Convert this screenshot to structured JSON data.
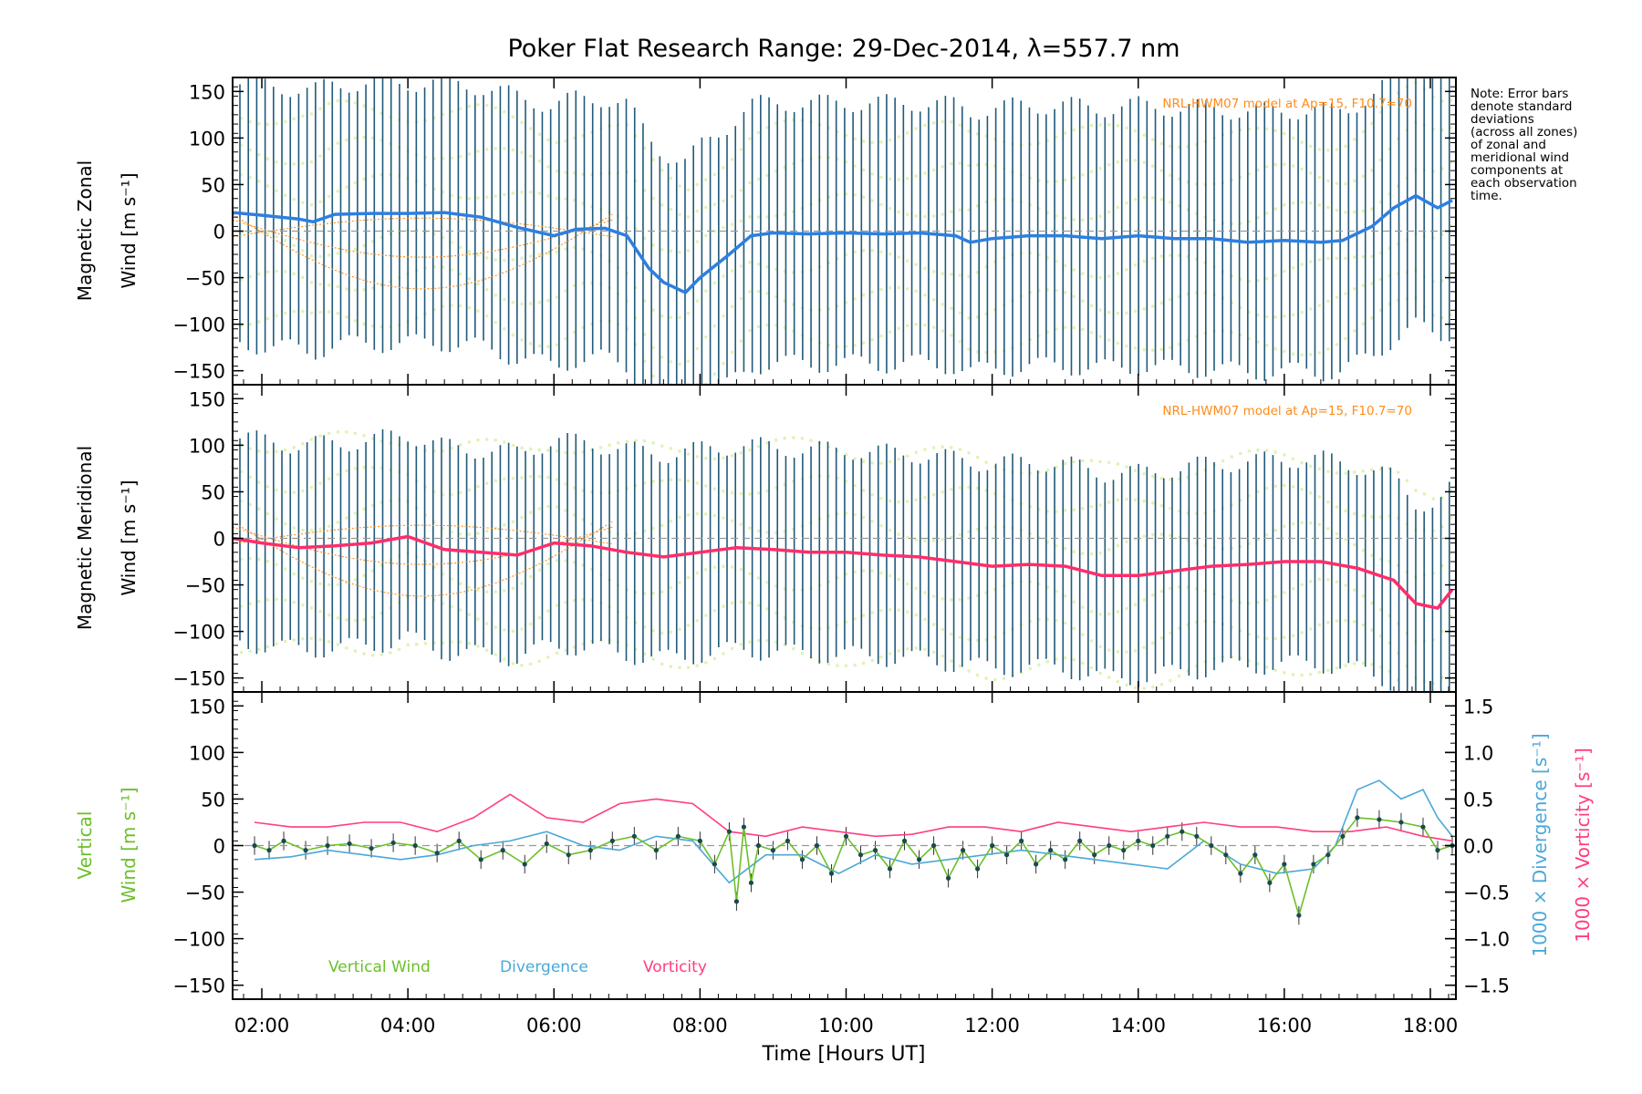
{
  "title": "Poker Flat Research Range: 29-Dec-2014, λ=557.7 nm",
  "note": [
    "Note: Error bars",
    "denote standard",
    "deviations",
    "(across all zones)",
    "of zonal and",
    "meridional wind",
    "components at",
    "each observation",
    "time."
  ],
  "colors": {
    "zonal": "#2d7fe0",
    "meridional": "#ff2d6a",
    "vertical": "#6cbf2a",
    "divergence": "#4aa8d8",
    "vorticity": "#ff3d7f",
    "errorbar": "#1f5a7a",
    "model": "#ff8c1a",
    "zone_points": "#d8f0a0",
    "points_blue": "#9aa0ff",
    "axis": "#000000"
  },
  "xaxis": {
    "label": "Time [Hours UT]",
    "range": [
      1.6,
      18.35
    ],
    "ticks": [
      2,
      4,
      6,
      8,
      10,
      12,
      14,
      16,
      18
    ],
    "tick_labels": [
      "02:00",
      "04:00",
      "06:00",
      "08:00",
      "10:00",
      "12:00",
      "14:00",
      "16:00",
      "18:00"
    ]
  },
  "chart_data": [
    {
      "type": "line",
      "panel": "zonal",
      "ylabel_1": "Magnetic Zonal",
      "ylabel_2": "Wind [m s⁻¹]",
      "ylim": [
        -165,
        165
      ],
      "yticks": [
        -150,
        -100,
        -50,
        0,
        50,
        100,
        150
      ],
      "model_label": "NRL-HWM07 model at Ap=15, F10.7=70",
      "series": [
        {
          "x": [
            1.6,
            2.0,
            2.5,
            2.7,
            3.0,
            3.5,
            4.0,
            4.5,
            5.0,
            5.5,
            6.0,
            6.3,
            6.7,
            7.0,
            7.3,
            7.5,
            7.8,
            8.0,
            8.4,
            8.7,
            9.0,
            9.5,
            10.0,
            10.5,
            11.0,
            11.5,
            11.7,
            12.0,
            12.5,
            13.0,
            13.5,
            14.0,
            14.5,
            15.0,
            15.5,
            16.0,
            16.5,
            16.8,
            17.2,
            17.5,
            17.8,
            18.1,
            18.3
          ],
          "values": [
            20,
            17,
            13,
            10,
            18,
            19,
            19,
            20,
            15,
            4,
            -5,
            2,
            3,
            -5,
            -40,
            -55,
            -66,
            -50,
            -25,
            -5,
            -2,
            -3,
            -2,
            -3,
            -2,
            -5,
            -12,
            -8,
            -5,
            -5,
            -8,
            -5,
            -8,
            -8,
            -12,
            -10,
            -12,
            -10,
            5,
            25,
            38,
            25,
            33
          ]
        }
      ],
      "error_halfwidth": 140
    },
    {
      "type": "line",
      "panel": "meridional",
      "ylabel_1": "Magnetic Meridional",
      "ylabel_2": "Wind [m s⁻¹]",
      "ylim": [
        -165,
        165
      ],
      "yticks": [
        -150,
        -100,
        -50,
        0,
        50,
        100,
        150
      ],
      "model_label": "NRL-HWM07 model at Ap=15, F10.7=70",
      "series": [
        {
          "x": [
            1.6,
            2.0,
            2.5,
            3.0,
            3.5,
            4.0,
            4.5,
            5.0,
            5.5,
            6.0,
            6.5,
            7.0,
            7.5,
            8.0,
            8.5,
            9.0,
            9.5,
            10.0,
            10.5,
            11.0,
            11.5,
            12.0,
            12.5,
            13.0,
            13.5,
            14.0,
            14.5,
            15.0,
            15.5,
            16.0,
            16.5,
            17.0,
            17.5,
            17.8,
            18.1,
            18.3
          ],
          "values": [
            0,
            -5,
            -10,
            -8,
            -5,
            2,
            -12,
            -15,
            -18,
            -5,
            -8,
            -15,
            -20,
            -15,
            -10,
            -12,
            -15,
            -15,
            -18,
            -20,
            -25,
            -30,
            -28,
            -30,
            -40,
            -40,
            -35,
            -30,
            -28,
            -25,
            -25,
            -32,
            -45,
            -70,
            -75,
            -55
          ]
        }
      ],
      "error_halfwidth": 110
    },
    {
      "type": "line",
      "panel": "vertical",
      "ylabel_1": "Vertical",
      "ylabel_2": "Wind [m s⁻¹]",
      "ylim": [
        -165,
        165
      ],
      "yticks": [
        -150,
        -100,
        -50,
        0,
        50,
        100,
        150
      ],
      "y2label_1": "1000 × Divergence [s⁻¹]",
      "y2label_2": "1000 × Vorticity [s⁻¹]",
      "y2lim": [
        -1.65,
        1.65
      ],
      "y2ticks": [
        -1.5,
        -1.0,
        -0.5,
        0.0,
        0.5,
        1.0,
        1.5
      ],
      "y2tick_labels": [
        "−1.5",
        "−1.0",
        "−0.5",
        "0.0",
        "0.5",
        "1.0",
        "1.5"
      ],
      "legend": [
        "Vertical Wind",
        "Divergence",
        "Vorticity"
      ],
      "series": [
        {
          "name": "Vertical Wind",
          "axis": "left",
          "x": [
            1.9,
            2.1,
            2.3,
            2.6,
            2.9,
            3.2,
            3.5,
            3.8,
            4.1,
            4.4,
            4.7,
            5.0,
            5.3,
            5.6,
            5.9,
            6.2,
            6.5,
            6.8,
            7.1,
            7.4,
            7.7,
            8.0,
            8.2,
            8.4,
            8.5,
            8.6,
            8.7,
            8.8,
            9.0,
            9.2,
            9.4,
            9.6,
            9.8,
            10.0,
            10.2,
            10.4,
            10.6,
            10.8,
            11.0,
            11.2,
            11.4,
            11.6,
            11.8,
            12.0,
            12.2,
            12.4,
            12.6,
            12.8,
            13.0,
            13.2,
            13.4,
            13.6,
            13.8,
            14.0,
            14.2,
            14.4,
            14.6,
            14.8,
            15.0,
            15.2,
            15.4,
            15.6,
            15.8,
            16.0,
            16.2,
            16.4,
            16.6,
            16.8,
            17.0,
            17.3,
            17.6,
            17.9,
            18.1,
            18.3
          ],
          "values": [
            0,
            -5,
            5,
            -5,
            0,
            2,
            -3,
            3,
            0,
            -8,
            5,
            -15,
            -5,
            -20,
            2,
            -10,
            -5,
            5,
            10,
            -5,
            10,
            5,
            -20,
            15,
            -60,
            20,
            -40,
            0,
            -5,
            5,
            -15,
            0,
            -30,
            10,
            -10,
            -5,
            -25,
            5,
            -15,
            0,
            -35,
            -5,
            -25,
            0,
            -10,
            5,
            -20,
            -5,
            -15,
            5,
            -10,
            0,
            -5,
            5,
            0,
            10,
            15,
            10,
            0,
            -10,
            -30,
            -10,
            -40,
            -20,
            -75,
            -20,
            -10,
            10,
            30,
            28,
            25,
            20,
            -5,
            0
          ]
        },
        {
          "name": "Divergence",
          "axis": "right",
          "x": [
            1.9,
            2.4,
            2.9,
            3.4,
            3.9,
            4.4,
            4.9,
            5.4,
            5.9,
            6.4,
            6.9,
            7.4,
            7.9,
            8.4,
            8.9,
            9.4,
            9.9,
            10.4,
            10.9,
            11.4,
            11.9,
            12.4,
            12.9,
            13.4,
            13.9,
            14.4,
            14.9,
            15.4,
            15.9,
            16.4,
            16.7,
            17.0,
            17.3,
            17.6,
            17.9,
            18.1,
            18.3
          ],
          "values": [
            -0.15,
            -0.12,
            -0.05,
            -0.1,
            -0.15,
            -0.1,
            0.0,
            0.05,
            0.15,
            0.0,
            -0.05,
            0.1,
            0.05,
            -0.4,
            -0.1,
            -0.1,
            -0.3,
            -0.1,
            -0.2,
            -0.15,
            -0.1,
            -0.05,
            -0.1,
            -0.15,
            -0.2,
            -0.25,
            0.05,
            -0.2,
            -0.3,
            -0.25,
            0.0,
            0.6,
            0.7,
            0.5,
            0.6,
            0.3,
            0.1
          ]
        },
        {
          "name": "Vorticity",
          "axis": "right",
          "x": [
            1.9,
            2.4,
            2.9,
            3.4,
            3.9,
            4.4,
            4.9,
            5.4,
            5.9,
            6.4,
            6.9,
            7.4,
            7.9,
            8.4,
            8.9,
            9.4,
            9.9,
            10.4,
            10.9,
            11.4,
            11.9,
            12.4,
            12.9,
            13.4,
            13.9,
            14.4,
            14.9,
            15.4,
            15.9,
            16.4,
            16.9,
            17.4,
            17.9,
            18.3
          ],
          "values": [
            0.25,
            0.2,
            0.2,
            0.25,
            0.25,
            0.15,
            0.3,
            0.55,
            0.3,
            0.25,
            0.45,
            0.5,
            0.45,
            0.15,
            0.1,
            0.2,
            0.15,
            0.1,
            0.12,
            0.2,
            0.2,
            0.15,
            0.25,
            0.2,
            0.15,
            0.2,
            0.25,
            0.2,
            0.2,
            0.15,
            0.15,
            0.2,
            0.1,
            0.05
          ]
        }
      ]
    }
  ]
}
